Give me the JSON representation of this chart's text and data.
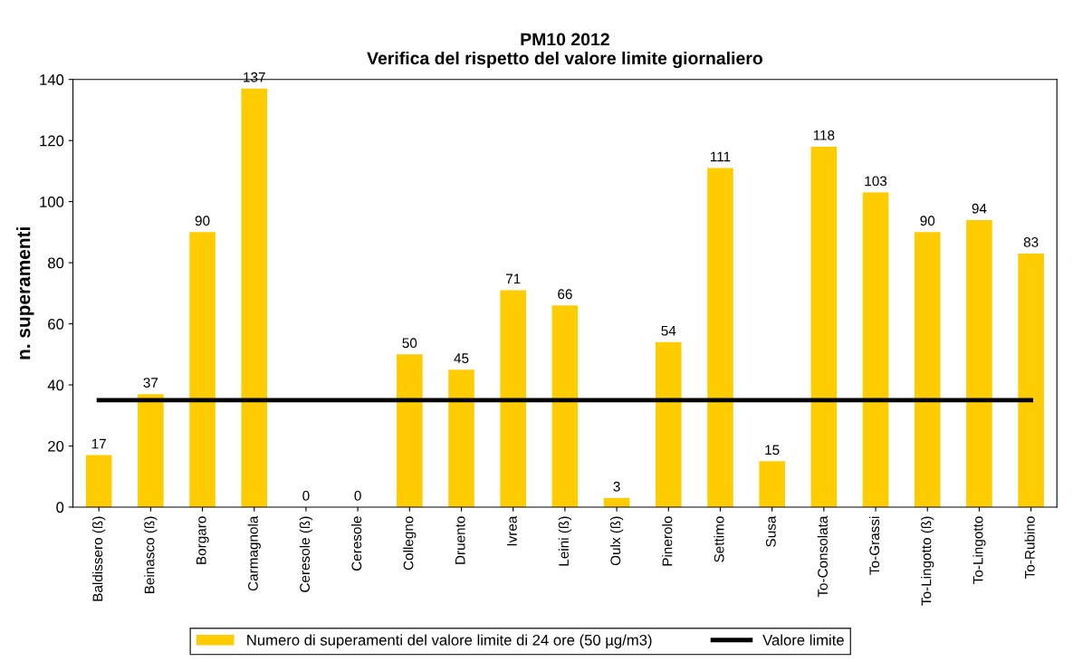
{
  "chart_data": {
    "type": "bar",
    "title": "PM10 2012\nVerifica del rispetto del valore limite giornaliero",
    "ylabel": "n. superamenti",
    "categories": [
      "Baldissero (ß)",
      "Beinasco (ß)",
      "Borgaro",
      "Carmagnola",
      "Ceresole (ß)",
      "Ceresole",
      "Collegno",
      "Druento",
      "Ivrea",
      "Leini (ß)",
      "Oulx (ß)",
      "Pinerolo",
      "Settimo",
      "Susa",
      "To-Consolata",
      "To-Grassi",
      "To-Lingotto (ß)",
      "To-Lingotto",
      "To-Rubino"
    ],
    "series": [
      {
        "name": "Numero di superamenti del valore limite di 24 ore (50 µg/m3)",
        "color": "#ffcc00",
        "values": [
          17,
          37,
          90,
          137,
          0,
          0,
          50,
          45,
          71,
          66,
          3,
          54,
          111,
          15,
          118,
          103,
          90,
          94,
          83
        ],
        "value_labels": [
          "17",
          "37",
          "90",
          "137",
          "0",
          "0",
          "50",
          "45",
          "71",
          "66",
          "3",
          "54",
          "111",
          "15",
          "118",
          "103",
          "90",
          "94",
          "83"
        ]
      },
      {
        "name": "Valore limite",
        "type": "line",
        "color": "#000000",
        "values": [
          35,
          35,
          35,
          35,
          35,
          35,
          35,
          35,
          35,
          35,
          35,
          35,
          35,
          35,
          35,
          35,
          35,
          35,
          35
        ]
      }
    ],
    "ylim": [
      0,
      140
    ],
    "yticks": [
      0,
      20,
      40,
      60,
      80,
      100,
      120,
      140
    ],
    "grid": false,
    "legend": "bottom"
  }
}
